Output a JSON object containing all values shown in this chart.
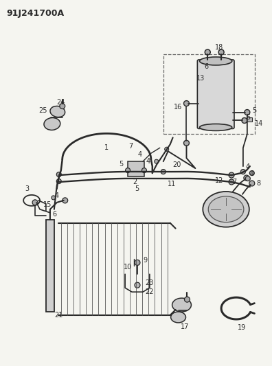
{
  "title": "91J241700A",
  "bg_color": "#f5f5f0",
  "line_color": "#2a2a2a",
  "title_fontsize": 9,
  "label_fontsize": 7,
  "fig_width": 3.96,
  "fig_height": 5.33,
  "dpi": 100
}
